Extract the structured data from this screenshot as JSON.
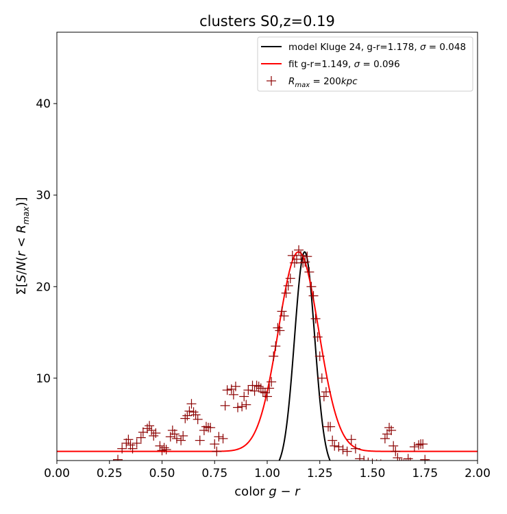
{
  "chart_data": {
    "type": "scatter",
    "title": "clusters S0,z=0.19",
    "xlabel": "color g − r",
    "ylabel": "Σ[S/N(r < R_max)]",
    "xlim": [
      0.0,
      2.0
    ],
    "ylim": [
      1.0,
      47.8
    ],
    "xticks": [
      "0.00",
      "0.25",
      "0.50",
      "0.75",
      "1.00",
      "1.25",
      "1.50",
      "1.75",
      "2.00"
    ],
    "yticks": [
      "10",
      "20",
      "30",
      "40"
    ],
    "grid": false,
    "legend_position": "top-right",
    "legend": [
      {
        "label": "model Kluge 24, g-r=1.178, σ = 0.048",
        "color": "#000000",
        "kind": "line"
      },
      {
        "label": "fit g-r=1.149, σ = 0.096",
        "color": "#ff0000",
        "kind": "line"
      },
      {
        "label": "R_max = 200kpc",
        "color": "#8b0000",
        "kind": "marker"
      }
    ],
    "series": [
      {
        "name": "model Kluge 24, g-r=1.178, σ = 0.048",
        "kind": "gaussian",
        "color": "#000000",
        "center": 1.178,
        "sigma": 0.048,
        "amplitude": 23.8,
        "baseline": 0
      },
      {
        "name": "fit g-r=1.149, σ = 0.096",
        "kind": "gaussian",
        "color": "#ff0000",
        "center": 1.149,
        "sigma": 0.096,
        "amplitude": 21.8,
        "baseline": 2.0
      },
      {
        "name": "R_max = 200kpc",
        "kind": "points",
        "color": "#8b0000",
        "x": [
          0.27,
          0.29,
          0.31,
          0.33,
          0.34,
          0.35,
          0.36,
          0.38,
          0.4,
          0.41,
          0.43,
          0.44,
          0.45,
          0.46,
          0.47,
          0.49,
          0.5,
          0.51,
          0.52,
          0.54,
          0.55,
          0.56,
          0.57,
          0.59,
          0.6,
          0.61,
          0.62,
          0.63,
          0.64,
          0.65,
          0.66,
          0.67,
          0.68,
          0.7,
          0.71,
          0.72,
          0.73,
          0.75,
          0.76,
          0.77,
          0.79,
          0.8,
          0.81,
          0.83,
          0.84,
          0.85,
          0.86,
          0.88,
          0.89,
          0.9,
          0.91,
          0.93,
          0.94,
          0.95,
          0.96,
          0.97,
          0.98,
          0.99,
          1.0,
          1.01,
          1.02,
          1.03,
          1.04,
          1.05,
          1.06,
          1.07,
          1.08,
          1.09,
          1.1,
          1.11,
          1.12,
          1.13,
          1.14,
          1.15,
          1.16,
          1.17,
          1.18,
          1.19,
          1.2,
          1.21,
          1.22,
          1.23,
          1.24,
          1.25,
          1.26,
          1.27,
          1.28,
          1.29,
          1.3,
          1.31,
          1.32,
          1.34,
          1.36,
          1.38,
          1.4,
          1.42,
          1.44,
          1.46,
          1.48,
          1.5,
          1.52,
          1.54,
          1.56,
          1.57,
          1.58,
          1.59,
          1.6,
          1.61,
          1.62,
          1.63,
          1.64,
          1.65,
          1.66,
          1.67,
          1.68,
          1.7,
          1.72,
          1.73,
          1.74,
          1.75,
          1.76
        ],
        "y": [
          0.6,
          1.1,
          2.3,
          2.9,
          3.3,
          2.7,
          2.3,
          2.9,
          3.5,
          4.1,
          4.5,
          4.8,
          4.3,
          3.7,
          4.0,
          2.6,
          2.1,
          2.4,
          2.2,
          3.6,
          4.3,
          3.9,
          3.4,
          3.2,
          3.7,
          5.6,
          5.9,
          6.4,
          7.2,
          6.3,
          6.0,
          5.5,
          3.2,
          4.3,
          4.7,
          4.6,
          4.6,
          2.8,
          2.0,
          3.6,
          3.4,
          7.0,
          8.7,
          8.8,
          8.2,
          9.1,
          6.8,
          6.9,
          8.0,
          7.1,
          8.7,
          9.2,
          8.6,
          9.2,
          9.1,
          8.9,
          8.5,
          8.4,
          8.0,
          8.9,
          9.6,
          12.4,
          13.5,
          15.5,
          15.2,
          17.3,
          16.8,
          19.3,
          20.1,
          20.9,
          23.4,
          22.6,
          23.0,
          24.0,
          23.4,
          22.6,
          22.7,
          23.3,
          21.6,
          20.0,
          19.0,
          16.5,
          14.5,
          12.4,
          10.0,
          8.0,
          8.5,
          4.7,
          4.7,
          3.2,
          2.6,
          2.5,
          2.2,
          2.0,
          3.3,
          2.3,
          1.2,
          1.0,
          0.8,
          0.7,
          0.6,
          0.6,
          3.4,
          3.9,
          4.6,
          4.3,
          2.6,
          2.0,
          1.3,
          0.8,
          0.7,
          0.6,
          0.6,
          1.2,
          0.8,
          2.5,
          2.7,
          2.8,
          2.8,
          1.1,
          0.6
        ]
      }
    ]
  }
}
